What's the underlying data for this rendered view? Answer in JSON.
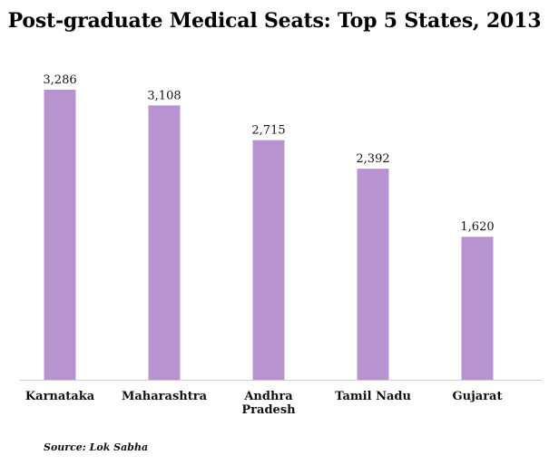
{
  "chart_data": {
    "type": "bar",
    "title": "Post-graduate Medical Seats: Top 5 States, 2013",
    "categories": [
      [
        "Karnataka"
      ],
      [
        "Maharashtra"
      ],
      [
        "Andhra",
        "Pradesh"
      ],
      [
        "Tamil Nadu"
      ],
      [
        "Gujarat"
      ]
    ],
    "values": [
      3286,
      3108,
      2715,
      2392,
      1620
    ],
    "value_labels": [
      "3,286",
      "3,108",
      "2,715",
      "2,392",
      "1,620"
    ],
    "xlabel": "",
    "ylabel": "",
    "ylim": [
      0,
      3286
    ],
    "grid": false,
    "legend": "none",
    "bar_color": "#b794d0",
    "axis_color": "#cfcfcf"
  },
  "source": "Source: Lok Sabha"
}
